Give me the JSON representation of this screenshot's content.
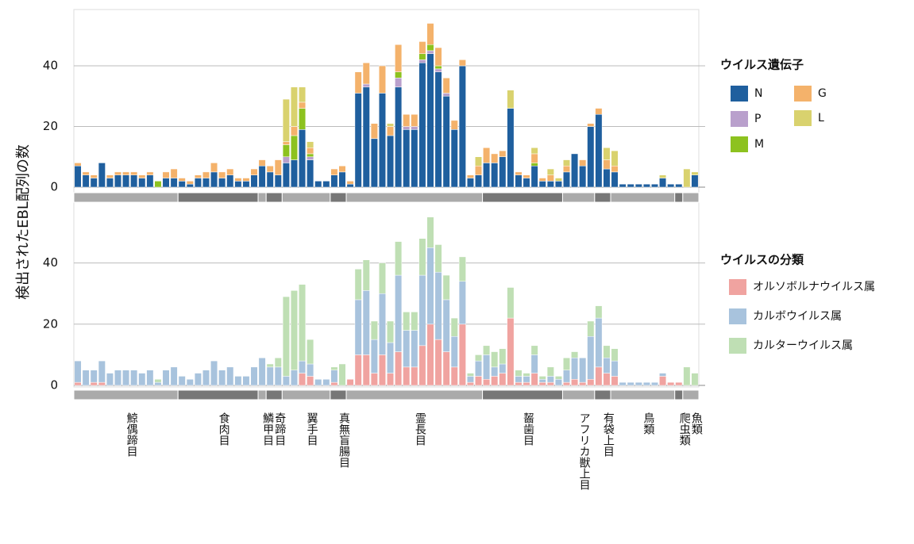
{
  "chart_data": [
    {
      "type": "bar",
      "stacked": true,
      "ylabel": "検出されたEBL配列の数",
      "legend_title": "ウイルス遺伝子",
      "ylim": [
        0,
        57
      ],
      "yticks": [
        0,
        20,
        40
      ],
      "grid": true,
      "groups": [
        {
          "label": "鯨偶蹄目",
          "range": [
            0,
            12
          ]
        },
        {
          "label": "食肉目",
          "range": [
            13,
            22
          ]
        },
        {
          "label": "鱗甲目",
          "range": [
            23,
            23
          ]
        },
        {
          "label": "奇蹄目",
          "range": [
            24,
            25
          ]
        },
        {
          "label": "翼手目",
          "range": [
            26,
            31
          ]
        },
        {
          "label": "真無盲腸目",
          "range": [
            32,
            33
          ]
        },
        {
          "label": "霊長目",
          "range": [
            34,
            50
          ]
        },
        {
          "label": "齧歯目",
          "range": [
            51,
            60
          ]
        },
        {
          "label": "アフリカ獣上目",
          "range": [
            61,
            64
          ]
        },
        {
          "label": "有袋上目",
          "range": [
            65,
            66
          ]
        },
        {
          "label": "鳥類",
          "range": [
            67,
            74
          ]
        },
        {
          "label": "爬虫類",
          "range": [
            75,
            75
          ]
        },
        {
          "label": "魚類",
          "range": [
            76,
            77
          ]
        }
      ],
      "series": [
        {
          "name": "N",
          "color": "#1f5f9e",
          "values": [
            7,
            4,
            3,
            8,
            3,
            4,
            4,
            4,
            3,
            4,
            0,
            3,
            3,
            2,
            1,
            3,
            3,
            5,
            3,
            4,
            2,
            2,
            4,
            7,
            5,
            4,
            8,
            9,
            19,
            9,
            2,
            2,
            4,
            5,
            1,
            31,
            33,
            16,
            31,
            17,
            33,
            19,
            19,
            41,
            44,
            38,
            30,
            19,
            40,
            3,
            4,
            8,
            8,
            10,
            26,
            4,
            3,
            7,
            2,
            2,
            2,
            5,
            11,
            7,
            20,
            24,
            6,
            5,
            1,
            1,
            1,
            1,
            1,
            3,
            1,
            1,
            0,
            4
          ]
        },
        {
          "name": "P",
          "color": "#b9a0cc",
          "values": [
            0,
            0,
            0,
            0,
            0,
            0,
            0,
            0,
            0,
            0,
            0,
            0,
            0,
            0,
            0,
            0,
            0,
            0,
            0,
            0,
            0,
            0,
            0,
            0,
            0,
            0,
            2,
            0,
            0,
            1,
            0,
            0,
            0,
            0,
            0,
            0,
            1,
            0,
            0,
            0,
            3,
            1,
            1,
            1,
            1,
            1,
            1,
            0,
            0,
            0,
            0,
            0,
            0,
            0,
            0,
            0,
            0,
            0,
            0,
            0,
            0,
            0,
            0,
            0,
            0,
            0,
            0,
            0,
            0,
            0,
            0,
            0,
            0,
            0,
            0,
            0,
            0,
            0
          ]
        },
        {
          "name": "M",
          "color": "#8dc21f",
          "values": [
            0,
            0,
            0,
            0,
            0,
            0,
            0,
            0,
            0,
            0,
            2,
            0,
            0,
            0,
            0,
            0,
            0,
            0,
            0,
            0,
            0,
            0,
            0,
            0,
            0,
            0,
            4,
            8,
            7,
            1,
            0,
            0,
            0,
            0,
            0,
            0,
            0,
            0,
            0,
            0,
            2,
            0,
            0,
            2,
            2,
            1,
            0,
            0,
            0,
            0,
            0,
            0,
            0,
            0,
            0,
            0,
            0,
            1,
            0,
            0,
            0,
            0,
            0,
            0,
            0,
            0,
            0,
            0,
            0,
            0,
            0,
            0,
            0,
            0,
            0,
            0,
            0,
            0
          ]
        },
        {
          "name": "G",
          "color": "#f4b26b",
          "values": [
            1,
            1,
            1,
            0,
            1,
            1,
            1,
            1,
            1,
            1,
            0,
            2,
            3,
            1,
            1,
            1,
            2,
            3,
            2,
            2,
            1,
            1,
            2,
            2,
            2,
            5,
            1,
            3,
            2,
            2,
            0,
            0,
            2,
            2,
            1,
            7,
            7,
            5,
            9,
            3,
            9,
            4,
            4,
            4,
            7,
            6,
            5,
            3,
            2,
            1,
            3,
            5,
            3,
            2,
            0,
            1,
            1,
            3,
            1,
            2,
            0,
            2,
            0,
            2,
            1,
            2,
            3,
            2,
            0,
            0,
            0,
            0,
            0,
            0,
            0,
            0,
            0,
            0
          ]
        },
        {
          "name": "L",
          "color": "#d9d26e",
          "values": [
            0,
            0,
            0,
            0,
            0,
            0,
            0,
            0,
            0,
            0,
            0,
            0,
            0,
            0,
            0,
            0,
            0,
            0,
            0,
            0,
            0,
            0,
            0,
            0,
            0,
            0,
            14,
            13,
            5,
            2,
            0,
            0,
            0,
            0,
            0,
            0,
            0,
            0,
            0,
            1,
            0,
            0,
            0,
            0,
            0,
            0,
            0,
            0,
            0,
            0,
            3,
            0,
            0,
            0,
            6,
            0,
            0,
            2,
            0,
            2,
            1,
            2,
            0,
            0,
            0,
            0,
            4,
            5,
            0,
            0,
            0,
            0,
            0,
            1,
            0,
            0,
            6,
            1
          ]
        }
      ]
    },
    {
      "type": "bar",
      "stacked": true,
      "legend_title": "ウイルスの分類",
      "ylim": [
        0,
        57
      ],
      "yticks": [
        0,
        20,
        40
      ],
      "grid": true,
      "series": [
        {
          "name": "オルソボルナウイルス属",
          "color": "#f0a3a0",
          "values": [
            1,
            0,
            1,
            1,
            0,
            0,
            0,
            0,
            0,
            0,
            0,
            0,
            0,
            0,
            0,
            0,
            0,
            0,
            0,
            0,
            0,
            0,
            0,
            0,
            0,
            0,
            0,
            0,
            4,
            3,
            0,
            0,
            1,
            0,
            2,
            10,
            10,
            4,
            10,
            4,
            11,
            6,
            6,
            13,
            20,
            15,
            11,
            6,
            20,
            1,
            3,
            2,
            3,
            4,
            22,
            1,
            1,
            4,
            1,
            1,
            0,
            1,
            2,
            1,
            2,
            6,
            4,
            3,
            0,
            0,
            0,
            0,
            0,
            3,
            1,
            1,
            0,
            0
          ]
        },
        {
          "name": "カルボウイルス属",
          "color": "#a8c3dd",
          "values": [
            7,
            5,
            4,
            7,
            4,
            5,
            5,
            5,
            4,
            5,
            1,
            5,
            6,
            3,
            2,
            4,
            5,
            8,
            5,
            6,
            3,
            3,
            6,
            9,
            6,
            6,
            3,
            5,
            4,
            4,
            2,
            2,
            4,
            0,
            0,
            18,
            21,
            11,
            20,
            10,
            25,
            12,
            12,
            23,
            25,
            22,
            17,
            10,
            14,
            2,
            5,
            8,
            3,
            3,
            0,
            2,
            2,
            6,
            1,
            2,
            2,
            4,
            7,
            8,
            14,
            16,
            5,
            5,
            1,
            1,
            1,
            1,
            1,
            1,
            0,
            0,
            0,
            0
          ]
        },
        {
          "name": "カルターウイルス属",
          "color": "#bfdfb4",
          "values": [
            0,
            0,
            0,
            0,
            0,
            0,
            0,
            0,
            0,
            0,
            1,
            0,
            0,
            0,
            0,
            0,
            0,
            0,
            0,
            0,
            0,
            0,
            0,
            0,
            1,
            3,
            26,
            26,
            25,
            8,
            0,
            0,
            1,
            7,
            0,
            10,
            10,
            6,
            10,
            7,
            11,
            6,
            6,
            12,
            10,
            9,
            8,
            6,
            8,
            1,
            2,
            3,
            5,
            5,
            10,
            2,
            1,
            3,
            1,
            3,
            1,
            4,
            2,
            0,
            5,
            4,
            4,
            4,
            0,
            0,
            0,
            0,
            0,
            0,
            0,
            0,
            6,
            4
          ]
        }
      ]
    }
  ]
}
